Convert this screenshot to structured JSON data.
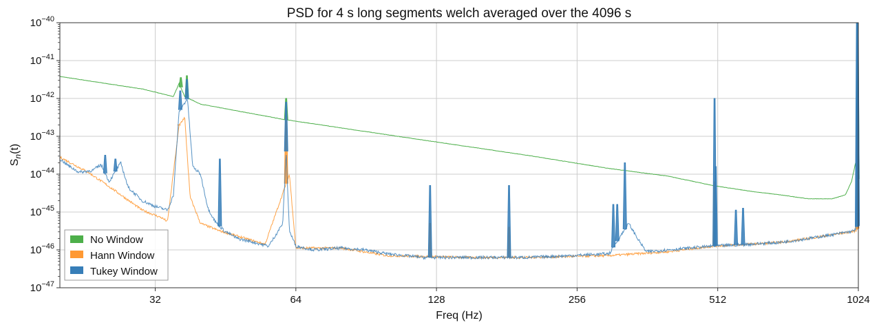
{
  "chart_data": {
    "type": "line",
    "title": "PSD for 4 s long segments welch averaged over the 4096 s",
    "xlabel": "Freq (Hz)",
    "ylabel_main": "S",
    "ylabel_sub": "n",
    "ylabel_tail": "(t)",
    "x_scale": "log2",
    "y_scale": "log10",
    "xlim": [
      20,
      1024
    ],
    "ylim_exp": [
      -47,
      -40
    ],
    "grid": true,
    "legend_position": "lower-left",
    "x_ticks": [
      "32",
      "64",
      "128",
      "256",
      "512",
      "1024"
    ],
    "x_tick_values": [
      32,
      64,
      128,
      256,
      512,
      1024
    ],
    "y_tick_exponents": [
      "−40",
      "−41",
      "−42",
      "−43",
      "−44",
      "−45",
      "−46",
      "−47"
    ],
    "y_tick_base": "10",
    "series": [
      {
        "name": "No Window",
        "color": "#4daf4a",
        "points": [
          [
            20,
            -41.42
          ],
          [
            30,
            -41.75
          ],
          [
            35,
            -41.95
          ],
          [
            36,
            -41.6
          ],
          [
            37,
            -41.95
          ],
          [
            40,
            -42.15
          ],
          [
            60,
            -42.55
          ],
          [
            120,
            -43.1
          ],
          [
            200,
            -43.5
          ],
          [
            300,
            -43.85
          ],
          [
            400,
            -44.05
          ],
          [
            500,
            -44.3
          ],
          [
            600,
            -44.45
          ],
          [
            700,
            -44.55
          ],
          [
            800,
            -44.65
          ],
          [
            900,
            -44.65
          ],
          [
            960,
            -44.55
          ],
          [
            990,
            -44.2
          ],
          [
            1010,
            -43.7
          ],
          [
            1024,
            -44.3
          ]
        ],
        "peaks": [
          [
            36.3,
            -41.45
          ],
          [
            37.4,
            -41.4
          ],
          [
            61,
            -42.0
          ],
          [
            1020,
            -40.0
          ]
        ]
      },
      {
        "name": "Hann Window",
        "color": "#ff9933",
        "points": [
          [
            20,
            -43.55
          ],
          [
            23,
            -43.95
          ],
          [
            26,
            -44.4
          ],
          [
            30,
            -44.95
          ],
          [
            33,
            -45.15
          ],
          [
            34,
            -45.25
          ],
          [
            36,
            -42.7
          ],
          [
            37,
            -42.5
          ],
          [
            38,
            -44.6
          ],
          [
            40,
            -45.3
          ],
          [
            44,
            -45.5
          ],
          [
            50,
            -45.7
          ],
          [
            55,
            -45.85
          ],
          [
            62,
            -44.0
          ],
          [
            64,
            -45.95
          ],
          [
            80,
            -45.95
          ],
          [
            100,
            -46.15
          ],
          [
            150,
            -46.2
          ],
          [
            200,
            -46.2
          ],
          [
            300,
            -46.15
          ],
          [
            400,
            -46.05
          ],
          [
            500,
            -45.9
          ],
          [
            600,
            -45.85
          ],
          [
            700,
            -45.8
          ],
          [
            800,
            -45.7
          ],
          [
            900,
            -45.6
          ],
          [
            1010,
            -45.5
          ],
          [
            1024,
            -45.4
          ]
        ],
        "peaks": [
          [
            36,
            -42.7
          ],
          [
            61,
            -42.5
          ],
          [
            124,
            -45.3
          ],
          [
            183,
            -45.4
          ],
          [
            504,
            -44.2
          ],
          [
            1018,
            -42.4
          ]
        ]
      },
      {
        "name": "Tukey Window",
        "color": "#377eb8",
        "points": [
          [
            20,
            -43.6
          ],
          [
            21,
            -43.8
          ],
          [
            22,
            -43.95
          ],
          [
            23.5,
            -43.9
          ],
          [
            24.5,
            -43.75
          ],
          [
            25.5,
            -44.2
          ],
          [
            27,
            -43.7
          ],
          [
            28,
            -44.35
          ],
          [
            30,
            -44.7
          ],
          [
            32,
            -44.85
          ],
          [
            34,
            -44.95
          ],
          [
            35,
            -44.55
          ],
          [
            36,
            -42.35
          ],
          [
            37.5,
            -42.0
          ],
          [
            38.5,
            -43.8
          ],
          [
            40,
            -44.0
          ],
          [
            41.5,
            -44.9
          ],
          [
            43,
            -45.25
          ],
          [
            45,
            -45.5
          ],
          [
            48,
            -45.7
          ],
          [
            52,
            -45.8
          ],
          [
            56,
            -45.9
          ],
          [
            60,
            -45.3
          ],
          [
            61,
            -43.4
          ],
          [
            62,
            -45.5
          ],
          [
            64,
            -45.9
          ],
          [
            70,
            -46.0
          ],
          [
            80,
            -45.95
          ],
          [
            90,
            -46.0
          ],
          [
            100,
            -46.1
          ],
          [
            120,
            -46.2
          ],
          [
            150,
            -46.2
          ],
          [
            200,
            -46.2
          ],
          [
            250,
            -46.15
          ],
          [
            300,
            -46.1
          ],
          [
            330,
            -45.3
          ],
          [
            345,
            -45.7
          ],
          [
            360,
            -46.05
          ],
          [
            400,
            -46.0
          ],
          [
            500,
            -45.9
          ],
          [
            600,
            -45.85
          ],
          [
            700,
            -45.8
          ],
          [
            800,
            -45.7
          ],
          [
            900,
            -45.6
          ],
          [
            1000,
            -45.5
          ],
          [
            1024,
            -45.35
          ]
        ],
        "peaks": [
          [
            25,
            -43.5
          ],
          [
            26.3,
            -43.6
          ],
          [
            36.2,
            -41.8
          ],
          [
            37.4,
            -41.5
          ],
          [
            44,
            -43.6
          ],
          [
            61,
            -42.1
          ],
          [
            124,
            -44.3
          ],
          [
            183,
            -44.3
          ],
          [
            306,
            -44.8
          ],
          [
            312,
            -44.8
          ],
          [
            324,
            -43.7
          ],
          [
            504,
            -42.0
          ],
          [
            507,
            -43.8
          ],
          [
            560,
            -44.95
          ],
          [
            580,
            -44.9
          ],
          [
            1017,
            -40.0
          ],
          [
            1021,
            -40.0
          ]
        ]
      }
    ]
  }
}
